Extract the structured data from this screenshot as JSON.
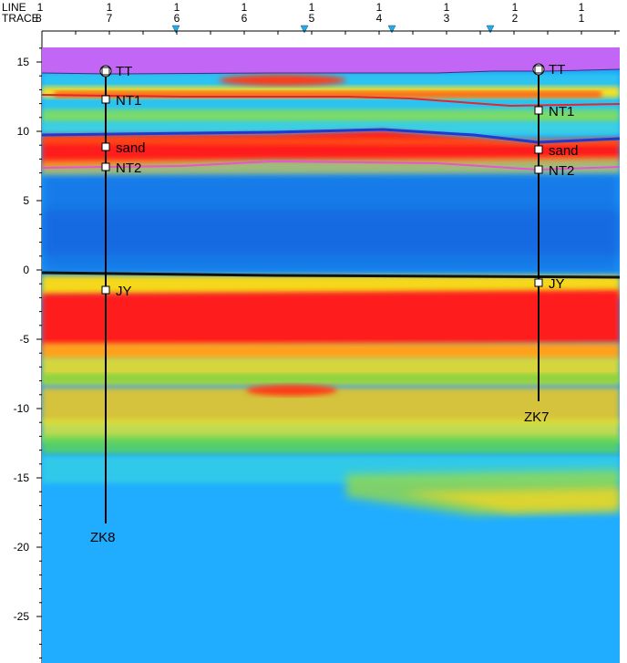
{
  "header": {
    "row1_title": "LINE",
    "row2_title": "TRACE",
    "trace_start": "8",
    "line_numbers": [
      "1",
      "1",
      "1",
      "1",
      "1",
      "1",
      "1",
      "1",
      "1"
    ],
    "trace_numbers": [
      "7",
      "6",
      "6",
      "5",
      "4",
      "3",
      "2",
      "1"
    ]
  },
  "axis": {
    "y_ticks": [
      "15",
      "10",
      "5",
      "0",
      "-5",
      "-10",
      "-15",
      "-20",
      "-25"
    ],
    "y_values": [
      15,
      10,
      5,
      0,
      -5,
      -10,
      -15,
      -20,
      -25
    ]
  },
  "wells": [
    {
      "name": "ZK8",
      "markers": [
        "TT",
        "NT1",
        "sand",
        "NT2",
        "JY"
      ]
    },
    {
      "name": "ZK7",
      "markers": [
        "TT",
        "NT1",
        "sand",
        "NT2",
        "JY"
      ]
    }
  ],
  "colors": {
    "top_layer": "#c266f5",
    "horizon_nt1": "#e2262b",
    "horizon_sand": "#1f3ad1",
    "horizon_nt2": "#e755d0",
    "horizon_jy": "#111111",
    "marker_triangle": "#29a7e6"
  }
}
